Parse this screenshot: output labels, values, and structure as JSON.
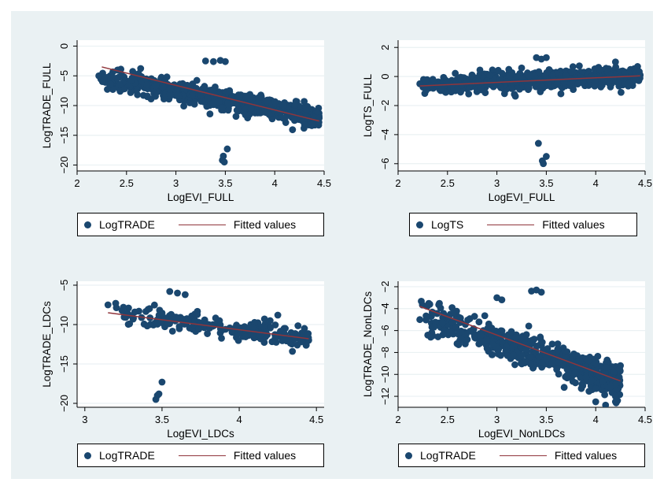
{
  "colors": {
    "marker": "#1a476f",
    "fit": "#90353b",
    "plot_bg": "#ffffff",
    "outer_bg": "#eaf1f3",
    "grid": "#eaf1f3"
  },
  "chart_data": [
    {
      "type": "scatter",
      "xlabel": "LogEVI_FULL",
      "ylabel": "LogTRADE_FULL",
      "xlim": [
        2,
        4.5
      ],
      "ylim": [
        -21,
        1
      ],
      "xticks": [
        2,
        2.5,
        3,
        3.5,
        4,
        4.5
      ],
      "yticks": [
        0,
        -5,
        -10,
        -15,
        -20
      ],
      "xtick_labels": [
        "2",
        "2.5",
        "3",
        "3.5",
        "4",
        "4.5"
      ],
      "ytick_labels": [
        "0",
        "-5",
        "-10",
        "-15",
        "-20"
      ],
      "grid": true,
      "legend_position": "bottom",
      "legend": [
        "LogTRADE",
        "Fitted values"
      ],
      "scatter_cloud": {
        "x_range": [
          2.22,
          4.45
        ],
        "center_start": -5.2,
        "center_end": -12.0,
        "spread": 1.5,
        "count": 700
      },
      "series": [
        {
          "name": "LogTRADE",
          "type": "scatter",
          "x": [
            2.22,
            2.4,
            2.55,
            3.3,
            3.38,
            3.45,
            3.5,
            3.52,
            3.48,
            3.47,
            3.49,
            4.2,
            4.25,
            4.3,
            4.4,
            4.45
          ],
          "y": [
            -5.0,
            -5.4,
            -5.7,
            -2.5,
            -2.6,
            -2.4,
            -2.6,
            -17.3,
            -18.5,
            -19.2,
            -19.5,
            -12.0,
            -11.7,
            -12.2,
            -12.0,
            -12.1
          ]
        },
        {
          "name": "Fitted values",
          "type": "line",
          "x": [
            2.25,
            4.45
          ],
          "y": [
            -3.5,
            -12.6
          ]
        }
      ]
    },
    {
      "type": "scatter",
      "xlabel": "LogEVI_FULL",
      "ylabel": "LogTS_FULL",
      "xlim": [
        2,
        4.5
      ],
      "ylim": [
        -6.5,
        2.5
      ],
      "xticks": [
        2,
        2.5,
        3,
        3.5,
        4,
        4.5
      ],
      "yticks": [
        2,
        0,
        -2,
        -4,
        -6
      ],
      "xtick_labels": [
        "2",
        "2.5",
        "3",
        "3.5",
        "4",
        "4.5"
      ],
      "ytick_labels": [
        "2",
        "0",
        "-2",
        "-4",
        "-6"
      ],
      "grid": true,
      "legend_position": "bottom",
      "legend": [
        "LogTS",
        "Fitted values"
      ],
      "scatter_cloud": {
        "x_range": [
          2.22,
          4.45
        ],
        "center_start": -0.55,
        "center_end": 0.0,
        "spread": 0.6,
        "count": 700
      },
      "series": [
        {
          "name": "LogTS",
          "type": "scatter",
          "x": [
            2.22,
            2.4,
            3.4,
            3.45,
            3.5,
            3.42,
            3.5,
            3.47,
            3.46,
            4.2,
            4.3,
            4.45
          ],
          "y": [
            -0.5,
            -0.6,
            1.3,
            1.2,
            1.3,
            -4.6,
            -5.5,
            -6.0,
            -5.8,
            1.0,
            0.3,
            0.1
          ]
        },
        {
          "name": "Fitted values",
          "type": "line",
          "x": [
            2.22,
            4.45
          ],
          "y": [
            -0.65,
            0.05
          ]
        }
      ]
    },
    {
      "type": "scatter",
      "xlabel": "LogEVI_LDCs",
      "ylabel": "LogTRADE_LDCs",
      "xlim": [
        2.95,
        4.55
      ],
      "ylim": [
        -20.5,
        -4.5
      ],
      "xticks": [
        3,
        3.5,
        4,
        4.5
      ],
      "yticks": [
        -5,
        -10,
        -15,
        -20
      ],
      "xtick_labels": [
        "3",
        "3.5",
        "4",
        "4.5"
      ],
      "ytick_labels": [
        "-5",
        "-10",
        "-15",
        "-20"
      ],
      "grid": true,
      "legend_position": "bottom",
      "legend": [
        "LogTRADE",
        "Fitted values"
      ],
      "scatter_cloud": {
        "x_range": [
          3.15,
          4.45
        ],
        "center_start": -8.3,
        "center_end": -11.8,
        "spread": 1.2,
        "count": 220
      },
      "series": [
        {
          "name": "LogTRADE",
          "type": "scatter",
          "x": [
            3.15,
            3.2,
            3.25,
            3.55,
            3.6,
            3.65,
            3.5,
            3.48,
            3.46,
            3.47,
            4.2,
            4.25,
            4.4,
            4.45
          ],
          "y": [
            -7.5,
            -7.3,
            -7.8,
            -5.8,
            -6.0,
            -6.2,
            -17.3,
            -18.8,
            -19.5,
            -19.0,
            -9.5,
            -8.8,
            -12.2,
            -12.0
          ]
        },
        {
          "name": "Fitted values",
          "type": "line",
          "x": [
            3.15,
            4.45
          ],
          "y": [
            -8.5,
            -11.8
          ]
        }
      ]
    },
    {
      "type": "scatter",
      "xlabel": "LogEVI_NonLDCs",
      "ylabel": "LogTRADE_NonLDCs",
      "xlim": [
        2,
        4.5
      ],
      "ylim": [
        -13,
        -1.5
      ],
      "xticks": [
        2,
        2.5,
        3,
        3.5,
        4,
        4.5
      ],
      "yticks": [
        -2,
        -4,
        -6,
        -8,
        -10,
        -12
      ],
      "xtick_labels": [
        "2",
        "2.5",
        "3",
        "3.5",
        "4",
        "4.5"
      ],
      "ytick_labels": [
        "-2",
        "-4",
        "-6",
        "-8",
        "-10",
        "-12"
      ],
      "grid": true,
      "legend_position": "bottom",
      "legend": [
        "LogTRADE",
        "Fitted values"
      ],
      "scatter_cloud": {
        "x_range": [
          2.22,
          4.25
        ],
        "center_start": -4.5,
        "center_end": -10.8,
        "spread": 1.3,
        "count": 600
      },
      "series": [
        {
          "name": "LogTRADE",
          "type": "scatter",
          "x": [
            2.22,
            2.45,
            3.0,
            3.05,
            3.35,
            3.4,
            3.45,
            4.0,
            4.1,
            4.2,
            4.25,
            4.0,
            4.2
          ],
          "y": [
            -5.0,
            -5.3,
            -3.0,
            -3.2,
            -2.4,
            -2.3,
            -2.5,
            -12.5,
            -12.8,
            -12.0,
            -9.2,
            -9.0,
            -12.5
          ]
        },
        {
          "name": "Fitted values",
          "type": "line",
          "x": [
            2.22,
            4.25
          ],
          "y": [
            -3.8,
            -10.6
          ]
        }
      ]
    }
  ]
}
